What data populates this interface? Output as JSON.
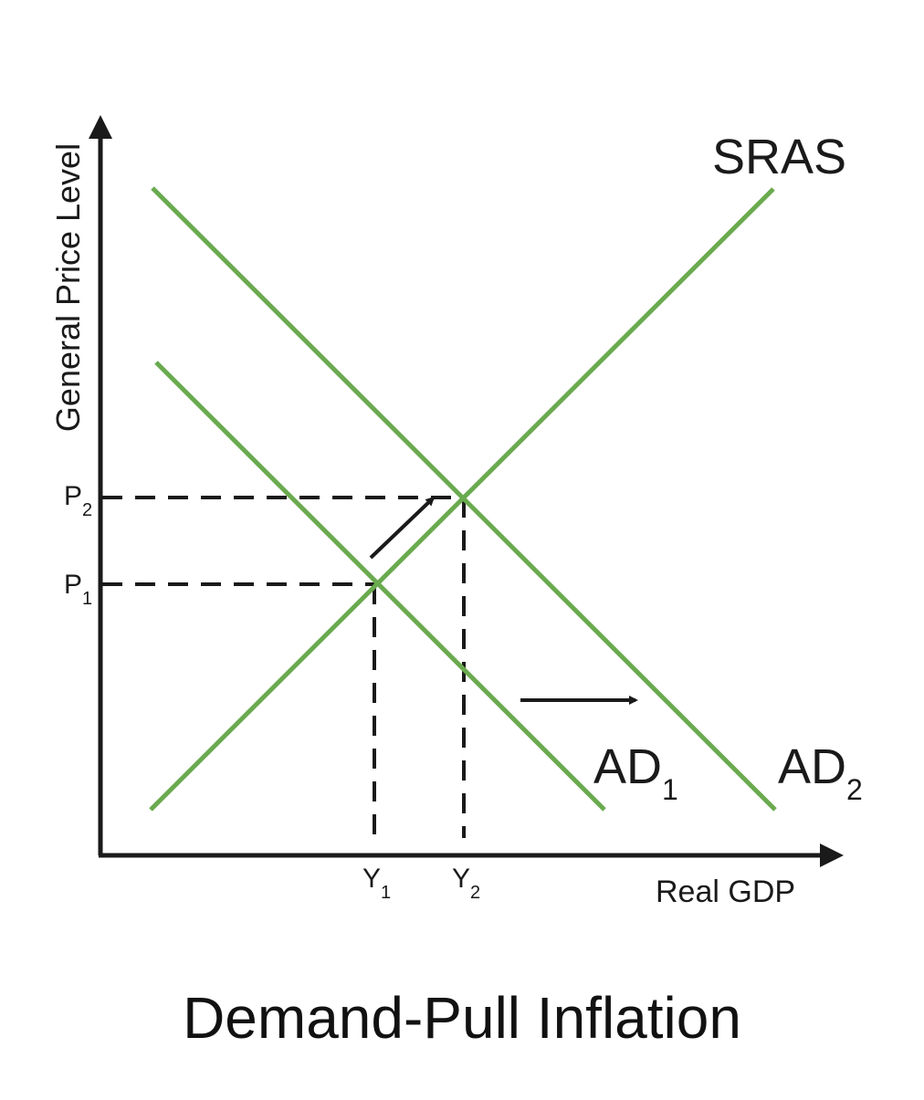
{
  "title": "Demand-Pull Inflation",
  "axes": {
    "y_label": "General Price Level",
    "x_label": "Real GDP"
  },
  "curves": {
    "sras": "SRAS",
    "ad1": {
      "base": "AD",
      "sub": "1"
    },
    "ad2": {
      "base": "AD",
      "sub": "2"
    }
  },
  "levels": {
    "p1": {
      "base": "P",
      "sub": "1"
    },
    "p2": {
      "base": "P",
      "sub": "2"
    },
    "y1": {
      "base": "Y",
      "sub": "1"
    },
    "y2": {
      "base": "Y",
      "sub": "2"
    }
  },
  "colors": {
    "curve": "#6aaa4f",
    "axis": "#1a1a1a",
    "guide": "#1a1a1a"
  }
}
